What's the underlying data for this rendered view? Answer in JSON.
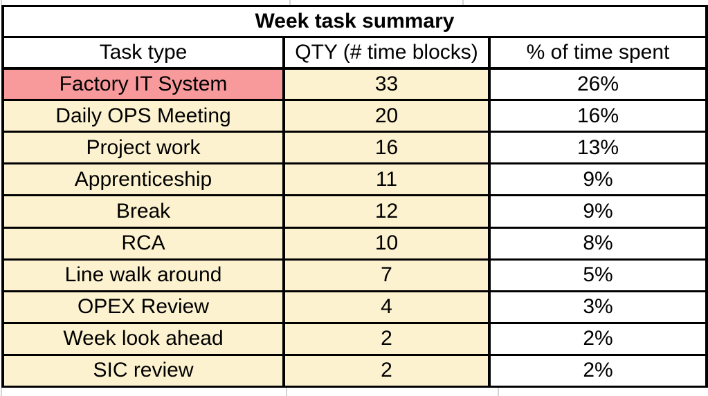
{
  "chart_data": {
    "type": "table",
    "title": "Week task summary",
    "columns": [
      "Task type",
      "QTY (# time blocks)",
      "% of time spent"
    ],
    "rows": [
      {
        "task": "Factory IT System",
        "qty": "33",
        "pct": "26%",
        "highlight": true
      },
      {
        "task": "Daily OPS Meeting",
        "qty": "20",
        "pct": "16%",
        "highlight": false
      },
      {
        "task": "Project work",
        "qty": "16",
        "pct": "13%",
        "highlight": false
      },
      {
        "task": "Apprenticeship",
        "qty": "11",
        "pct": "9%",
        "highlight": false
      },
      {
        "task": "Break",
        "qty": "12",
        "pct": "9%",
        "highlight": false
      },
      {
        "task": "RCA",
        "qty": "10",
        "pct": "8%",
        "highlight": false
      },
      {
        "task": "Line walk around",
        "qty": "7",
        "pct": "5%",
        "highlight": false
      },
      {
        "task": "OPEX Review",
        "qty": "4",
        "pct": "3%",
        "highlight": false
      },
      {
        "task": "Week look ahead",
        "qty": "2",
        "pct": "2%",
        "highlight": false
      },
      {
        "task": "SIC review",
        "qty": "2",
        "pct": "2%",
        "highlight": false
      }
    ],
    "colors": {
      "highlight_fill": "#F8999C",
      "accent_fill": "#FCF2CF",
      "border": "#000000",
      "gridline": "#D4D4D4"
    },
    "layout_hints": {
      "title_bold": true,
      "all_text_centered": true,
      "qty_column_fill": "accent",
      "pct_column_fill": "white"
    }
  }
}
